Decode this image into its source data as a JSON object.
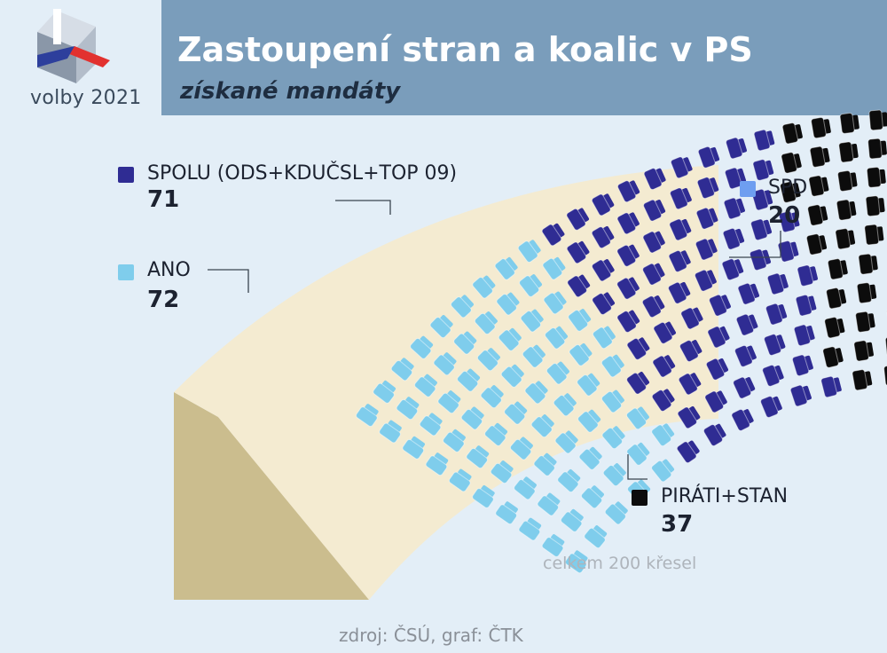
{
  "branding": {
    "logo_caption": "volby 2021",
    "logo_colors": {
      "top": "#d6dde6",
      "left": "#8a97a8",
      "red": "#e2312f",
      "blue": "#2d3f9c"
    }
  },
  "chart_data": {
    "type": "parliament",
    "title": "Zastoupení stran a koalic v PS",
    "subtitle": "získané mandáty",
    "total_note": "celkem 200 křesel",
    "source": "zdroj: ČSÚ, graf: ČTK",
    "total_seats": 200,
    "parties": [
      {
        "name": "ANO",
        "seats": 72,
        "value_label": "72",
        "color": "#7fcdec"
      },
      {
        "name": "SPOLU (ODS+KDUČSL+TOP 09)",
        "seats": 71,
        "value_label": "71",
        "color": "#2f2c93"
      },
      {
        "name": "PIRÁTI+STAN",
        "seats": 37,
        "value_label": "37",
        "color": "#0c0c0c"
      },
      {
        "name": "SPD",
        "seats": 20,
        "value_label": "20",
        "color": "#6e9ef0"
      }
    ]
  }
}
